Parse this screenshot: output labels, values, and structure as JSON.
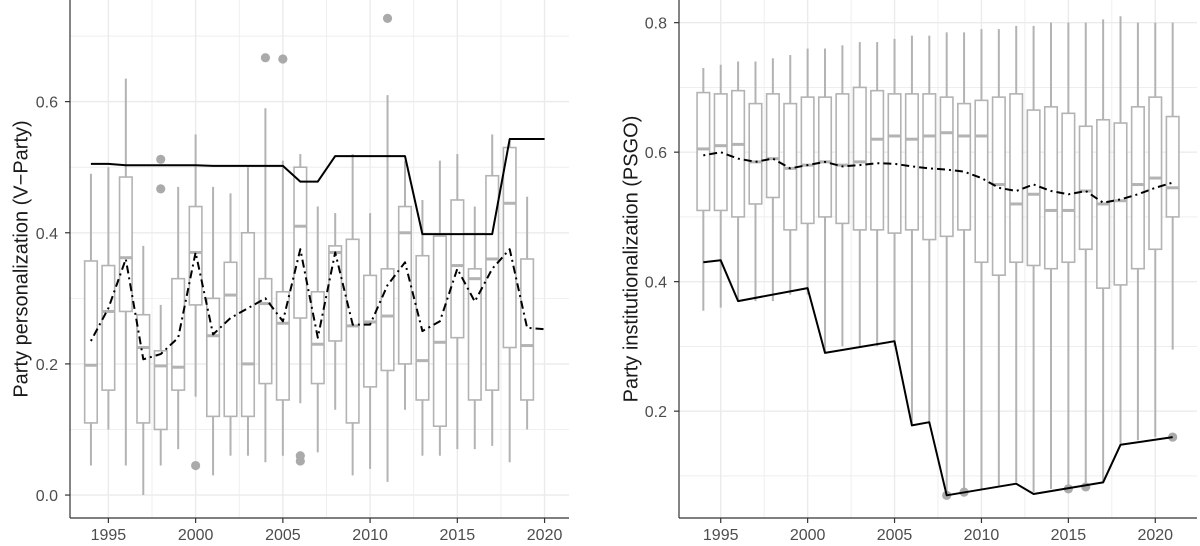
{
  "chart_data": [
    {
      "type": "box",
      "ylabel": "Party personalization (V−Party)",
      "xlabel": "",
      "xlim": [
        1992.8,
        2021.4
      ],
      "ylim": [
        -0.035,
        0.755
      ],
      "xticks": [
        "1995",
        "2000",
        "2005",
        "2010",
        "2015",
        "2020"
      ],
      "yticks": [
        "0.0",
        "0.2",
        "0.4",
        "0.6"
      ],
      "grid": true,
      "colors": {
        "box": "#b3b3b3",
        "outlier": "#aaaaaa",
        "line": "#000000",
        "grid": "#ebebeb"
      },
      "boxes": [
        {
          "x": 1994,
          "lo": 0.045,
          "q1": 0.11,
          "med": 0.198,
          "q3": 0.357,
          "hi": 0.49,
          "out": []
        },
        {
          "x": 1995,
          "lo": 0.1,
          "q1": 0.16,
          "med": 0.28,
          "q3": 0.35,
          "hi": 0.5,
          "out": []
        },
        {
          "x": 1996,
          "lo": 0.045,
          "q1": 0.28,
          "med": 0.362,
          "q3": 0.485,
          "hi": 0.635,
          "out": []
        },
        {
          "x": 1997,
          "lo": 0.0,
          "q1": 0.11,
          "med": 0.225,
          "q3": 0.275,
          "hi": 0.38,
          "out": []
        },
        {
          "x": 1998,
          "lo": 0.045,
          "q1": 0.1,
          "med": 0.197,
          "q3": 0.22,
          "hi": 0.29,
          "out": [
            0.512,
            0.467
          ]
        },
        {
          "x": 1999,
          "lo": 0.07,
          "q1": 0.16,
          "med": 0.195,
          "q3": 0.33,
          "hi": 0.47,
          "out": []
        },
        {
          "x": 2000,
          "lo": 0.15,
          "q1": 0.29,
          "med": 0.37,
          "q3": 0.44,
          "hi": 0.55,
          "out": [
            0.045
          ]
        },
        {
          "x": 2001,
          "lo": 0.03,
          "q1": 0.12,
          "med": 0.243,
          "q3": 0.3,
          "hi": 0.47,
          "out": []
        },
        {
          "x": 2002,
          "lo": 0.06,
          "q1": 0.12,
          "med": 0.305,
          "q3": 0.355,
          "hi": 0.46,
          "out": []
        },
        {
          "x": 2003,
          "lo": 0.06,
          "q1": 0.12,
          "med": 0.2,
          "q3": 0.4,
          "hi": 0.5,
          "out": []
        },
        {
          "x": 2004,
          "lo": 0.05,
          "q1": 0.17,
          "med": 0.292,
          "q3": 0.33,
          "hi": 0.59,
          "out": [
            0.667
          ]
        },
        {
          "x": 2005,
          "lo": 0.06,
          "q1": 0.145,
          "med": 0.262,
          "q3": 0.31,
          "hi": 0.51,
          "out": [
            0.665
          ]
        },
        {
          "x": 2006,
          "lo": 0.14,
          "q1": 0.27,
          "med": 0.41,
          "q3": 0.5,
          "hi": 0.52,
          "out": [
            0.06,
            0.052
          ]
        },
        {
          "x": 2007,
          "lo": 0.065,
          "q1": 0.17,
          "med": 0.23,
          "q3": 0.31,
          "hi": 0.44,
          "out": []
        },
        {
          "x": 2008,
          "lo": 0.13,
          "q1": 0.235,
          "med": 0.37,
          "q3": 0.38,
          "hi": 0.43,
          "out": []
        },
        {
          "x": 2009,
          "lo": 0.03,
          "q1": 0.11,
          "med": 0.258,
          "q3": 0.39,
          "hi": 0.52,
          "out": []
        },
        {
          "x": 2010,
          "lo": 0.04,
          "q1": 0.165,
          "med": 0.264,
          "q3": 0.335,
          "hi": 0.43,
          "out": []
        },
        {
          "x": 2011,
          "lo": 0.02,
          "q1": 0.19,
          "med": 0.273,
          "q3": 0.345,
          "hi": 0.61,
          "out": [
            0.727
          ]
        },
        {
          "x": 2012,
          "lo": 0.13,
          "q1": 0.2,
          "med": 0.4,
          "q3": 0.44,
          "hi": 0.51,
          "out": []
        },
        {
          "x": 2013,
          "lo": 0.06,
          "q1": 0.145,
          "med": 0.205,
          "q3": 0.365,
          "hi": 0.45,
          "out": []
        },
        {
          "x": 2014,
          "lo": 0.06,
          "q1": 0.105,
          "med": 0.233,
          "q3": 0.395,
          "hi": 0.51,
          "out": []
        },
        {
          "x": 2015,
          "lo": 0.07,
          "q1": 0.24,
          "med": 0.35,
          "q3": 0.45,
          "hi": 0.52,
          "out": []
        },
        {
          "x": 2016,
          "lo": 0.07,
          "q1": 0.145,
          "med": 0.33,
          "q3": 0.345,
          "hi": 0.44,
          "out": []
        },
        {
          "x": 2017,
          "lo": 0.075,
          "q1": 0.16,
          "med": 0.36,
          "q3": 0.487,
          "hi": 0.55,
          "out": []
        },
        {
          "x": 2018,
          "lo": 0.05,
          "q1": 0.225,
          "med": 0.445,
          "q3": 0.53,
          "hi": 0.54,
          "out": []
        },
        {
          "x": 2019,
          "lo": 0.1,
          "q1": 0.145,
          "med": 0.228,
          "q3": 0.36,
          "hi": 0.455,
          "out": []
        }
      ],
      "series": [
        {
          "style": "dotdash",
          "points": [
            [
              1994,
              0.235
            ],
            [
              1995,
              0.285
            ],
            [
              1996,
              0.36
            ],
            [
              1997,
              0.207
            ],
            [
              1998,
              0.215
            ],
            [
              1999,
              0.24
            ],
            [
              2000,
              0.37
            ],
            [
              2001,
              0.245
            ],
            [
              2002,
              0.27
            ],
            [
              2003,
              0.285
            ],
            [
              2004,
              0.3
            ],
            [
              2005,
              0.265
            ],
            [
              2006,
              0.375
            ],
            [
              2007,
              0.24
            ],
            [
              2008,
              0.37
            ],
            [
              2009,
              0.26
            ],
            [
              2010,
              0.26
            ],
            [
              2011,
              0.32
            ],
            [
              2012,
              0.355
            ],
            [
              2013,
              0.25
            ],
            [
              2014,
              0.265
            ],
            [
              2015,
              0.345
            ],
            [
              2016,
              0.295
            ],
            [
              2017,
              0.345
            ],
            [
              2018,
              0.375
            ],
            [
              2019,
              0.255
            ],
            [
              2020,
              0.253
            ]
          ]
        },
        {
          "style": "solid",
          "points": [
            [
              1994,
              0.505
            ],
            [
              1995,
              0.505
            ],
            [
              1996,
              0.503
            ],
            [
              2000,
              0.503
            ],
            [
              2001,
              0.502
            ],
            [
              2005,
              0.502
            ],
            [
              2006,
              0.478
            ],
            [
              2007,
              0.478
            ],
            [
              2008,
              0.517
            ],
            [
              2012,
              0.517
            ],
            [
              2013,
              0.398
            ],
            [
              2017,
              0.398
            ],
            [
              2018,
              0.543
            ],
            [
              2020,
              0.543
            ]
          ]
        }
      ]
    },
    {
      "type": "box",
      "ylabel": "Party institutionalization (PSGO)",
      "xlabel": "",
      "xlim": [
        1992.6,
        2022.4
      ],
      "ylim": [
        0.035,
        0.835
      ],
      "xticks": [
        "1995",
        "2000",
        "2005",
        "2010",
        "2015",
        "2020"
      ],
      "yticks": [
        "0.2",
        "0.4",
        "0.6",
        "0.8"
      ],
      "grid": true,
      "colors": {
        "box": "#b3b3b3",
        "outlier": "#aaaaaa",
        "line": "#000000",
        "grid": "#ebebeb"
      },
      "boxes": [
        {
          "x": 1994,
          "lo": 0.355,
          "q1": 0.51,
          "med": 0.605,
          "q3": 0.692,
          "hi": 0.73,
          "out": []
        },
        {
          "x": 1995,
          "lo": 0.36,
          "q1": 0.51,
          "med": 0.61,
          "q3": 0.69,
          "hi": 0.735,
          "out": []
        },
        {
          "x": 1996,
          "lo": 0.37,
          "q1": 0.5,
          "med": 0.612,
          "q3": 0.695,
          "hi": 0.74,
          "out": []
        },
        {
          "x": 1997,
          "lo": 0.37,
          "q1": 0.52,
          "med": 0.585,
          "q3": 0.675,
          "hi": 0.74,
          "out": []
        },
        {
          "x": 1998,
          "lo": 0.37,
          "q1": 0.53,
          "med": 0.59,
          "q3": 0.69,
          "hi": 0.745,
          "out": []
        },
        {
          "x": 1999,
          "lo": 0.38,
          "q1": 0.48,
          "med": 0.575,
          "q3": 0.675,
          "hi": 0.75,
          "out": []
        },
        {
          "x": 2000,
          "lo": 0.38,
          "q1": 0.49,
          "med": 0.58,
          "q3": 0.685,
          "hi": 0.76,
          "out": []
        },
        {
          "x": 2001,
          "lo": 0.29,
          "q1": 0.5,
          "med": 0.585,
          "q3": 0.685,
          "hi": 0.76,
          "out": []
        },
        {
          "x": 2002,
          "lo": 0.3,
          "q1": 0.49,
          "med": 0.58,
          "q3": 0.69,
          "hi": 0.765,
          "out": []
        },
        {
          "x": 2003,
          "lo": 0.3,
          "q1": 0.48,
          "med": 0.585,
          "q3": 0.7,
          "hi": 0.77,
          "out": []
        },
        {
          "x": 2004,
          "lo": 0.3,
          "q1": 0.48,
          "med": 0.62,
          "q3": 0.695,
          "hi": 0.77,
          "out": []
        },
        {
          "x": 2005,
          "lo": 0.3,
          "q1": 0.475,
          "med": 0.625,
          "q3": 0.69,
          "hi": 0.775,
          "out": []
        },
        {
          "x": 2006,
          "lo": 0.18,
          "q1": 0.48,
          "med": 0.62,
          "q3": 0.69,
          "hi": 0.78,
          "out": []
        },
        {
          "x": 2007,
          "lo": 0.18,
          "q1": 0.465,
          "med": 0.625,
          "q3": 0.69,
          "hi": 0.78,
          "out": []
        },
        {
          "x": 2008,
          "lo": 0.075,
          "q1": 0.47,
          "med": 0.63,
          "q3": 0.685,
          "hi": 0.785,
          "out": [
            0.07
          ]
        },
        {
          "x": 2009,
          "lo": 0.08,
          "q1": 0.48,
          "med": 0.625,
          "q3": 0.675,
          "hi": 0.785,
          "out": [
            0.075
          ]
        },
        {
          "x": 2010,
          "lo": 0.08,
          "q1": 0.43,
          "med": 0.625,
          "q3": 0.68,
          "hi": 0.79,
          "out": []
        },
        {
          "x": 2011,
          "lo": 0.085,
          "q1": 0.41,
          "med": 0.55,
          "q3": 0.685,
          "hi": 0.79,
          "out": []
        },
        {
          "x": 2012,
          "lo": 0.09,
          "q1": 0.43,
          "med": 0.52,
          "q3": 0.69,
          "hi": 0.795,
          "out": []
        },
        {
          "x": 2013,
          "lo": 0.075,
          "q1": 0.425,
          "med": 0.535,
          "q3": 0.665,
          "hi": 0.795,
          "out": []
        },
        {
          "x": 2014,
          "lo": 0.08,
          "q1": 0.42,
          "med": 0.51,
          "q3": 0.67,
          "hi": 0.8,
          "out": []
        },
        {
          "x": 2015,
          "lo": 0.085,
          "q1": 0.43,
          "med": 0.51,
          "q3": 0.66,
          "hi": 0.8,
          "out": [
            0.08
          ]
        },
        {
          "x": 2016,
          "lo": 0.085,
          "q1": 0.45,
          "med": 0.54,
          "q3": 0.64,
          "hi": 0.8,
          "out": [
            0.083
          ]
        },
        {
          "x": 2017,
          "lo": 0.09,
          "q1": 0.39,
          "med": 0.52,
          "q3": 0.65,
          "hi": 0.805,
          "out": []
        },
        {
          "x": 2018,
          "lo": 0.15,
          "q1": 0.395,
          "med": 0.525,
          "q3": 0.645,
          "hi": 0.81,
          "out": []
        },
        {
          "x": 2019,
          "lo": 0.155,
          "q1": 0.42,
          "med": 0.55,
          "q3": 0.67,
          "hi": 0.8,
          "out": []
        },
        {
          "x": 2020,
          "lo": 0.16,
          "q1": 0.45,
          "med": 0.56,
          "q3": 0.685,
          "hi": 0.8,
          "out": []
        },
        {
          "x": 2021,
          "lo": 0.295,
          "q1": 0.5,
          "med": 0.545,
          "q3": 0.655,
          "hi": 0.8,
          "out": [
            0.16
          ]
        }
      ],
      "series": [
        {
          "style": "dotdash",
          "points": [
            [
              1994,
              0.595
            ],
            [
              1995,
              0.6
            ],
            [
              1996,
              0.59
            ],
            [
              1997,
              0.585
            ],
            [
              1998,
              0.59
            ],
            [
              1999,
              0.575
            ],
            [
              2000,
              0.58
            ],
            [
              2001,
              0.585
            ],
            [
              2002,
              0.578
            ],
            [
              2003,
              0.58
            ],
            [
              2004,
              0.583
            ],
            [
              2005,
              0.582
            ],
            [
              2006,
              0.578
            ],
            [
              2007,
              0.575
            ],
            [
              2008,
              0.573
            ],
            [
              2009,
              0.57
            ],
            [
              2010,
              0.56
            ],
            [
              2011,
              0.545
            ],
            [
              2012,
              0.54
            ],
            [
              2013,
              0.55
            ],
            [
              2014,
              0.54
            ],
            [
              2015,
              0.535
            ],
            [
              2016,
              0.54
            ],
            [
              2017,
              0.522
            ],
            [
              2018,
              0.527
            ],
            [
              2019,
              0.535
            ],
            [
              2020,
              0.545
            ],
            [
              2021,
              0.553
            ]
          ]
        },
        {
          "style": "solid",
          "points": [
            [
              1994,
              0.43
            ],
            [
              1995,
              0.433
            ],
            [
              1996,
              0.37
            ],
            [
              2000,
              0.39
            ],
            [
              2001,
              0.29
            ],
            [
              2005,
              0.308
            ],
            [
              2006,
              0.178
            ],
            [
              2007,
              0.183
            ],
            [
              2008,
              0.07
            ],
            [
              2012,
              0.088
            ],
            [
              2013,
              0.072
            ],
            [
              2017,
              0.09
            ],
            [
              2018,
              0.148
            ],
            [
              2021,
              0.16
            ]
          ]
        }
      ]
    }
  ]
}
